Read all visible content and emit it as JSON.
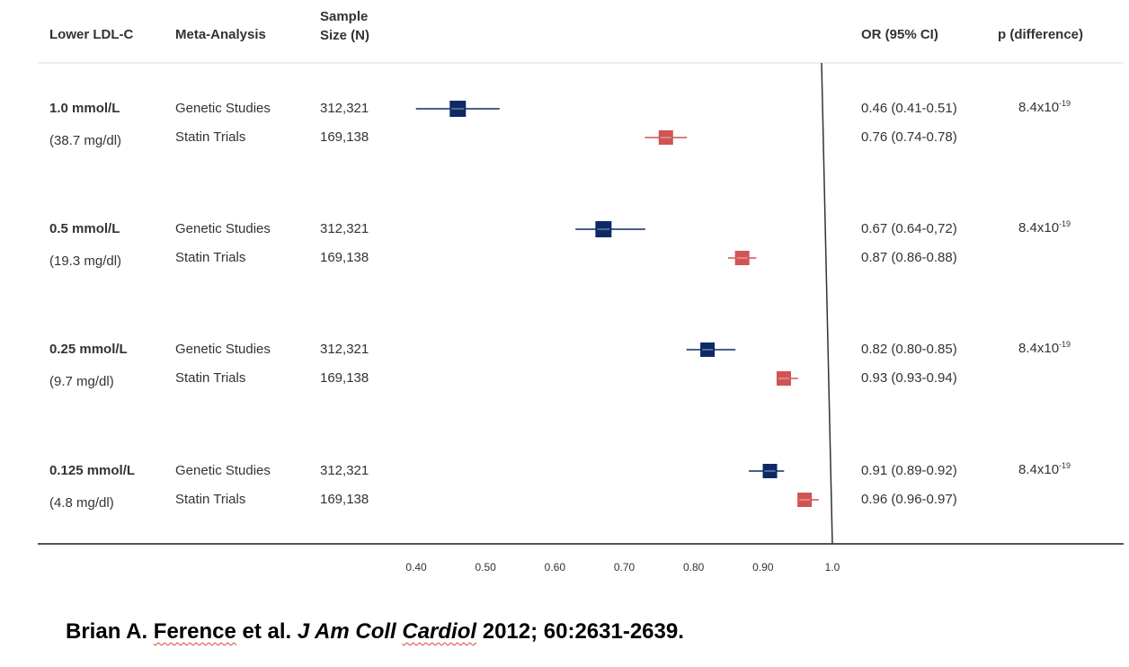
{
  "headers": {
    "lower": "Lower LDL-C",
    "meta": "Meta-Analysis",
    "sample_line1": "Sample",
    "sample_line2": "Size (N)",
    "or": "OR (95% CI)",
    "p": "p (difference)"
  },
  "colors": {
    "genetic": "#0d2a66",
    "statin": "#d05454",
    "axis": "#555555",
    "rule": "#dddddd"
  },
  "citation": {
    "authors_pre": "Brian A. ",
    "authors_name": "Ference",
    "authors_post": " et al. ",
    "journal_pre": "J Am Coll ",
    "journal_name": "Cardiol",
    "rest": " 2012; 60:2631-2639."
  },
  "chart_data": {
    "type": "forest",
    "xlim": [
      0.4,
      1.0
    ],
    "ticks": [
      "0.40",
      "0.50",
      "0.60",
      "0.70",
      "0.80",
      "0.90",
      "1.0"
    ],
    "reference_line": 1.0,
    "groups": [
      {
        "label": "1.0 mmol/L",
        "sublabel": "(38.7 mg/dl)",
        "p": "8.4x10",
        "p_exp": "-19",
        "rows": [
          {
            "study": "Genetic Studies",
            "n": "312,321",
            "or": 0.46,
            "lo": 0.41,
            "hi": 0.51,
            "ci_text": "0.46 (0.41-0.51)",
            "series": "genetic"
          },
          {
            "study": "Statin Trials",
            "n": "169,138",
            "or": 0.76,
            "lo": 0.74,
            "hi": 0.78,
            "ci_text": "0.76 (0.74-0.78)",
            "series": "statin"
          }
        ]
      },
      {
        "label": "0.5 mmol/L",
        "sublabel": "(19.3 mg/dl)",
        "p": "8.4x10",
        "p_exp": "-19",
        "rows": [
          {
            "study": "Genetic Studies",
            "n": "312,321",
            "or": 0.67,
            "lo": 0.64,
            "hi": 0.72,
            "ci_text": "0.67 (0.64-0,72)",
            "series": "genetic"
          },
          {
            "study": "Statin Trials",
            "n": "169,138",
            "or": 0.87,
            "lo": 0.86,
            "hi": 0.88,
            "ci_text": "0.87 (0.86-0.88)",
            "series": "statin"
          }
        ]
      },
      {
        "label": "0.25 mmol/L",
        "sublabel": "(9.7 mg/dl)",
        "p": "8.4x10",
        "p_exp": "-19",
        "rows": [
          {
            "study": "Genetic Studies",
            "n": "312,321",
            "or": 0.82,
            "lo": 0.8,
            "hi": 0.85,
            "ci_text": "0.82 (0.80-0.85)",
            "series": "genetic"
          },
          {
            "study": "Statin Trials",
            "n": "169,138",
            "or": 0.93,
            "lo": 0.93,
            "hi": 0.94,
            "ci_text": "0.93 (0.93-0.94)",
            "series": "statin"
          }
        ]
      },
      {
        "label": "0.125 mmol/L",
        "sublabel": "(4.8 mg/dl)",
        "p": "8.4x10",
        "p_exp": "-19",
        "rows": [
          {
            "study": "Genetic Studies",
            "n": "312,321",
            "or": 0.91,
            "lo": 0.89,
            "hi": 0.92,
            "ci_text": "0.91 (0.89-0.92)",
            "series": "genetic"
          },
          {
            "study": "Statin Trials",
            "n": "169,138",
            "or": 0.96,
            "lo": 0.96,
            "hi": 0.97,
            "ci_text": "0.96 (0.96-0.97)",
            "series": "statin"
          }
        ]
      }
    ]
  }
}
